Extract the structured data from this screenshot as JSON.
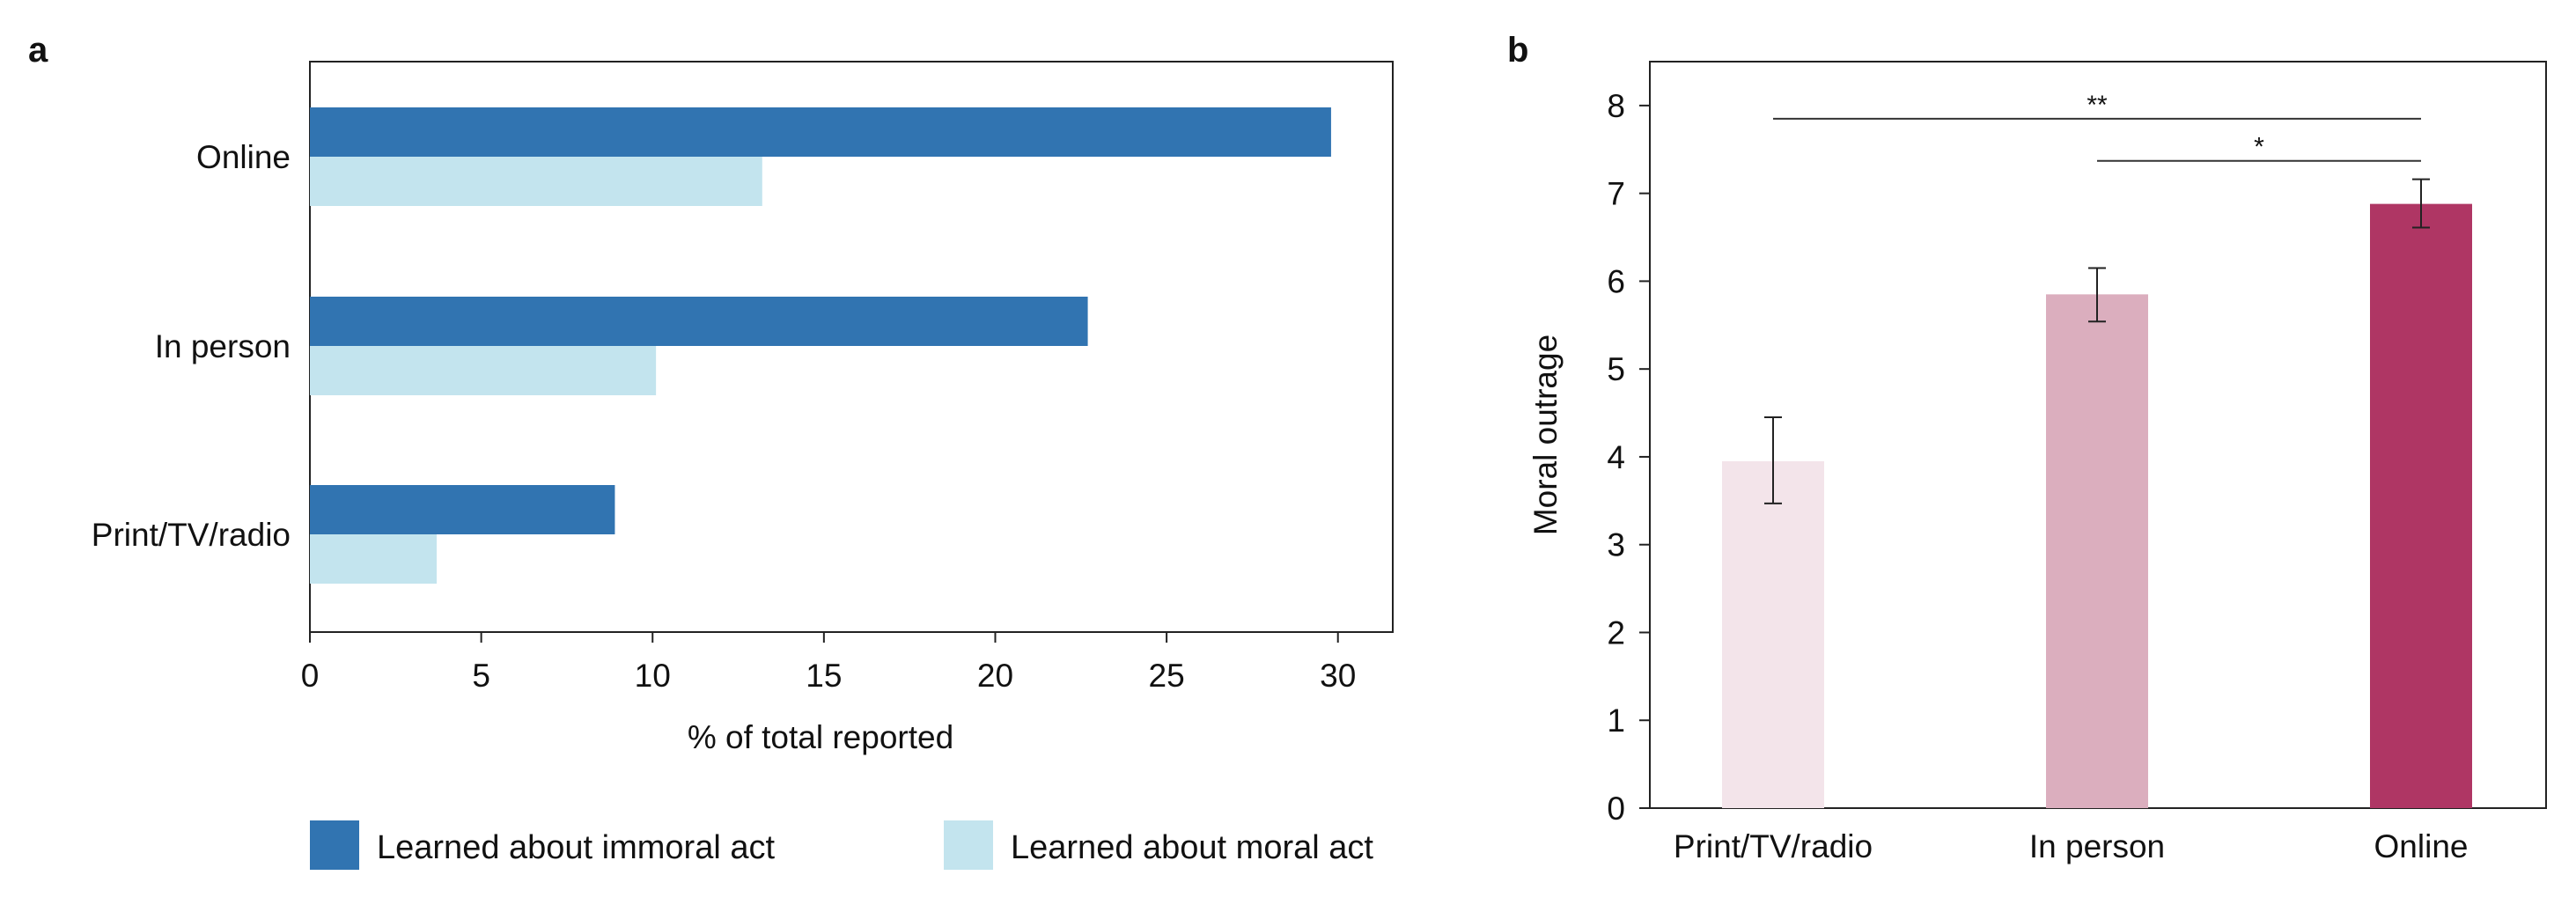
{
  "colors": {
    "immoral": "#3174b1",
    "moral": "#c3e4ee",
    "print": "#f3e4ea",
    "inperson": "#dbaebe",
    "online": "#af3664"
  },
  "chart_data": [
    {
      "panel": "a",
      "type": "bar",
      "orientation": "horizontal",
      "categories": [
        "Online",
        "In person",
        "Print/TV/radio"
      ],
      "series": [
        {
          "name": "Learned about immoral act",
          "values": [
            29.8,
            22.7,
            8.9
          ]
        },
        {
          "name": "Learned about moral act",
          "values": [
            13.2,
            10.1,
            3.7
          ]
        }
      ],
      "xlabel": "% of total reported",
      "ylabel": "",
      "xlim": [
        0,
        31.6
      ],
      "xticks": [
        0,
        5,
        10,
        15,
        20,
        25,
        30
      ],
      "grid": false,
      "legend_position": "bottom"
    },
    {
      "panel": "b",
      "type": "bar",
      "categories": [
        "Print/TV/radio",
        "In person",
        "Online"
      ],
      "values": [
        3.95,
        5.85,
        6.88
      ],
      "error_low": [
        3.47,
        5.54,
        6.61
      ],
      "error_high": [
        4.45,
        6.15,
        7.16
      ],
      "ylabel": "Moral outrage",
      "xlabel": "",
      "ylim": [
        0,
        8.5
      ],
      "yticks": [
        0,
        1,
        2,
        3,
        4,
        5,
        6,
        7,
        8
      ],
      "grid": false,
      "significance": [
        {
          "from": "Print/TV/radio",
          "to": "Online",
          "label": "**"
        },
        {
          "from": "In person",
          "to": "Online",
          "label": "*"
        }
      ]
    }
  ]
}
